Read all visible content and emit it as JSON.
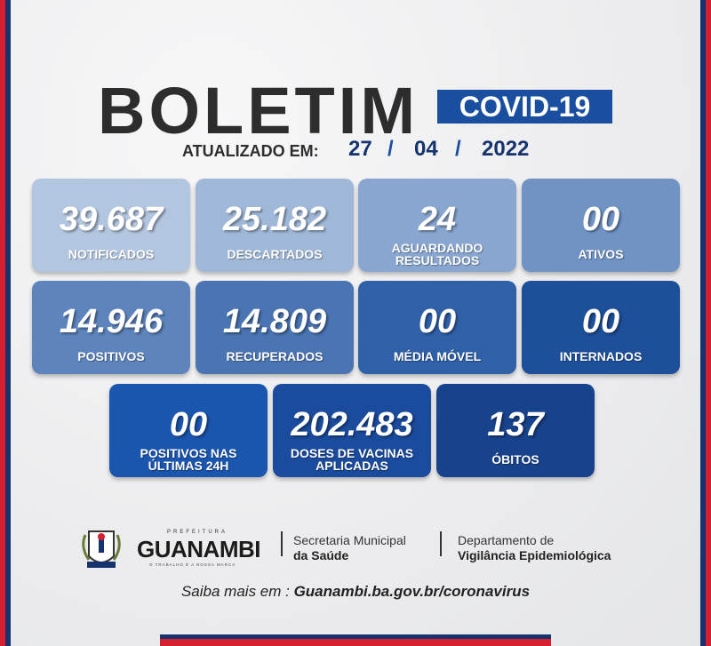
{
  "header": {
    "title": "BOLETIM",
    "badge": "COVID-19",
    "updated_label": "ATUALIZADO EM:",
    "date": {
      "day": "27",
      "month": "04",
      "year": "2022",
      "separator": "/"
    }
  },
  "cards": [
    {
      "value": "39.687",
      "label": "NOTIFICADOS",
      "color": "#b3c6df"
    },
    {
      "value": "25.182",
      "label": "DESCARTADOS",
      "color": "#a0b8d8"
    },
    {
      "value": "24",
      "label": "AGUARDANDO RESULTADOS",
      "color": "#88a6cf"
    },
    {
      "value": "00",
      "label": "ATIVOS",
      "color": "#7093c4"
    },
    {
      "value": "14.946",
      "label": "POSITIVOS",
      "color": "#5d84bd"
    },
    {
      "value": "14.809",
      "label": "RECUPERADOS",
      "color": "#4a74b2"
    },
    {
      "value": "00",
      "label": "MÉDIA MÓVEL",
      "color": "#2f60a8"
    },
    {
      "value": "00",
      "label": "INTERNADOS",
      "color": "#1e4f9b"
    },
    {
      "value": "00",
      "label": "POSITIVOS NAS ÚLTIMAS 24H",
      "color": "#1a55ae"
    },
    {
      "value": "202.483",
      "label": "DOSES DE VACINAS APLICADAS",
      "color": "#1b4b9d"
    },
    {
      "value": "137",
      "label": "ÓBITOS",
      "color": "#17428c"
    }
  ],
  "footer": {
    "prefeitura": "PREFEITURA",
    "city": "GUANAMBI",
    "motto": "O TRABALHO É A NOSSA MARCA",
    "secretaria_line1": "Secretaria Municipal",
    "secretaria_line2": "da Saúde",
    "dept_line1": "Departamento de",
    "dept_line2": "Vigilância Epidemiológica",
    "more_label": "Saiba mais em : ",
    "url": "Guanambi.ba.gov.br/coronavirus"
  },
  "colors": {
    "red": "#d6202f",
    "navy": "#16336e",
    "accent": "#1a4fa0"
  }
}
